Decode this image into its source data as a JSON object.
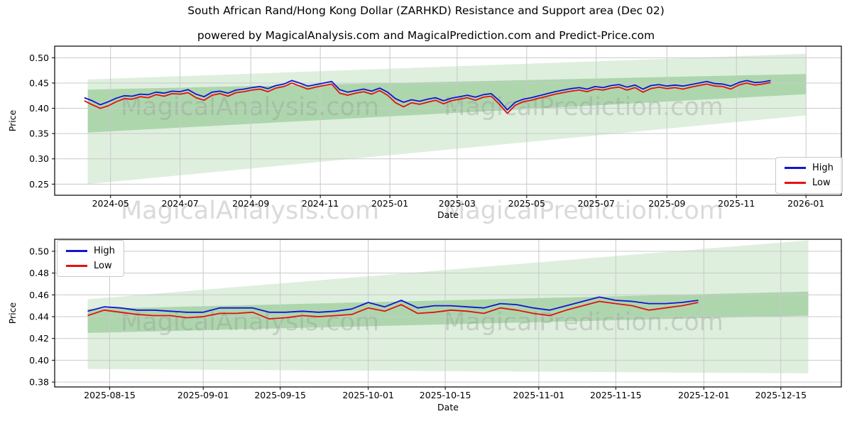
{
  "page": {
    "title": "South African Rand/Hong Kong Dollar (ZARHKD) Resistance and Support area (Dec 02)",
    "subtitle": "powered by MagicalAnalysis.com and MagicalPrediction.com and Predict-Price.com"
  },
  "watermarks": {
    "left_text": "MagicalAnalysis.com",
    "right_text": "MagicalPrediction.com",
    "color": "rgba(150,150,150,0.35)"
  },
  "colors": {
    "high_line": "#1414d2",
    "low_line": "#e41111",
    "band_light": "rgba(0,128,0,0.13)",
    "band_mid": "rgba(0,128,0,0.22)",
    "grid": "#c9c9c9",
    "spine": "#000000"
  },
  "chart_data": [
    {
      "type": "line",
      "title": "",
      "xlabel": "Date",
      "ylabel": "Price",
      "grid": true,
      "legend_position": "center-right",
      "x_domain": [
        "2024-03-13",
        "2026-02-01"
      ],
      "y_domain": [
        0.228,
        0.523
      ],
      "y_ticks": [
        0.25,
        0.3,
        0.35,
        0.4,
        0.45,
        0.5
      ],
      "x_ticks": [
        {
          "date": "2024-05-01",
          "label": "2024-05"
        },
        {
          "date": "2024-07-01",
          "label": "2024-07"
        },
        {
          "date": "2024-09-01",
          "label": "2024-09"
        },
        {
          "date": "2024-11-01",
          "label": "2024-11"
        },
        {
          "date": "2025-01-01",
          "label": "2025-01"
        },
        {
          "date": "2025-03-01",
          "label": "2025-03"
        },
        {
          "date": "2025-05-01",
          "label": "2025-05"
        },
        {
          "date": "2025-07-01",
          "label": "2025-07"
        },
        {
          "date": "2025-09-01",
          "label": "2025-09"
        },
        {
          "date": "2025-11-01",
          "label": "2025-11"
        },
        {
          "date": "2026-01-01",
          "label": "2026-01"
        }
      ],
      "bands": [
        {
          "name": "support-resistance-fan-light",
          "color_key": "band_light",
          "points": [
            [
              "2024-04-11",
              0.457
            ],
            [
              "2026-01-01",
              0.508
            ],
            [
              "2026-01-01",
              0.386
            ],
            [
              "2024-04-11",
              0.25
            ]
          ]
        },
        {
          "name": "support-resistance-fan-mid",
          "color_key": "band_mid",
          "points": [
            [
              "2024-04-11",
              0.437
            ],
            [
              "2026-01-01",
              0.468
            ],
            [
              "2026-01-01",
              0.428
            ],
            [
              "2024-04-11",
              0.352
            ]
          ]
        }
      ],
      "series": [
        {
          "name": "High",
          "color_key": "high_line",
          "start": "2024-04-08",
          "step_days": 7,
          "values": [
            0.421,
            0.415,
            0.407,
            0.413,
            0.42,
            0.425,
            0.424,
            0.428,
            0.427,
            0.432,
            0.43,
            0.434,
            0.433,
            0.437,
            0.428,
            0.423,
            0.432,
            0.434,
            0.43,
            0.436,
            0.438,
            0.441,
            0.443,
            0.439,
            0.445,
            0.448,
            0.455,
            0.45,
            0.444,
            0.447,
            0.45,
            0.453,
            0.437,
            0.432,
            0.435,
            0.438,
            0.434,
            0.44,
            0.432,
            0.419,
            0.412,
            0.417,
            0.414,
            0.418,
            0.421,
            0.415,
            0.42,
            0.423,
            0.426,
            0.422,
            0.427,
            0.429,
            0.415,
            0.397,
            0.412,
            0.418,
            0.421,
            0.425,
            0.429,
            0.433,
            0.436,
            0.439,
            0.441,
            0.438,
            0.443,
            0.441,
            0.445,
            0.447,
            0.442,
            0.446,
            0.438,
            0.445,
            0.447,
            0.444,
            0.446,
            0.444,
            0.447,
            0.45,
            0.453,
            0.449,
            0.448,
            0.444,
            0.451,
            0.455,
            0.451,
            0.452,
            0.455
          ]
        },
        {
          "name": "Low",
          "color_key": "low_line",
          "start": "2024-04-08",
          "step_days": 7,
          "values": [
            0.415,
            0.407,
            0.4,
            0.405,
            0.413,
            0.419,
            0.418,
            0.423,
            0.421,
            0.427,
            0.424,
            0.429,
            0.428,
            0.431,
            0.421,
            0.416,
            0.426,
            0.429,
            0.424,
            0.431,
            0.433,
            0.436,
            0.438,
            0.433,
            0.44,
            0.443,
            0.45,
            0.444,
            0.438,
            0.442,
            0.445,
            0.448,
            0.43,
            0.426,
            0.43,
            0.433,
            0.428,
            0.435,
            0.426,
            0.411,
            0.403,
            0.411,
            0.408,
            0.412,
            0.416,
            0.409,
            0.415,
            0.418,
            0.421,
            0.416,
            0.422,
            0.424,
            0.408,
            0.39,
            0.406,
            0.413,
            0.416,
            0.42,
            0.424,
            0.428,
            0.431,
            0.434,
            0.436,
            0.433,
            0.438,
            0.436,
            0.44,
            0.442,
            0.436,
            0.441,
            0.432,
            0.439,
            0.442,
            0.439,
            0.441,
            0.438,
            0.442,
            0.445,
            0.448,
            0.444,
            0.443,
            0.438,
            0.446,
            0.45,
            0.446,
            0.448,
            0.451
          ]
        }
      ]
    },
    {
      "type": "line",
      "title": "",
      "xlabel": "Date",
      "ylabel": "Price",
      "grid": true,
      "legend_position": "top-left",
      "x_domain": [
        "2025-08-05",
        "2025-12-26"
      ],
      "y_domain": [
        0.3755,
        0.511
      ],
      "y_ticks": [
        0.38,
        0.4,
        0.42,
        0.44,
        0.46,
        0.48,
        0.5
      ],
      "x_ticks": [
        {
          "date": "2025-08-15",
          "label": "2025-08-15"
        },
        {
          "date": "2025-09-01",
          "label": "2025-09-01"
        },
        {
          "date": "2025-09-15",
          "label": "2025-09-15"
        },
        {
          "date": "2025-10-01",
          "label": "2025-10-01"
        },
        {
          "date": "2025-10-15",
          "label": "2025-10-15"
        },
        {
          "date": "2025-11-01",
          "label": "2025-11-01"
        },
        {
          "date": "2025-11-15",
          "label": "2025-11-15"
        },
        {
          "date": "2025-12-01",
          "label": "2025-12-01"
        },
        {
          "date": "2025-12-15",
          "label": "2025-12-15"
        }
      ],
      "bands": [
        {
          "name": "support-resistance-fan-light",
          "color_key": "band_light",
          "points": [
            [
              "2025-08-11",
              0.456
            ],
            [
              "2025-12-20",
              0.51
            ],
            [
              "2025-12-20",
              0.388
            ],
            [
              "2025-08-11",
              0.392
            ]
          ]
        },
        {
          "name": "support-resistance-fan-mid",
          "color_key": "band_mid",
          "points": [
            [
              "2025-08-11",
              0.447
            ],
            [
              "2025-12-20",
              0.463
            ],
            [
              "2025-12-20",
              0.441
            ],
            [
              "2025-08-11",
              0.425
            ]
          ]
        }
      ],
      "series": [
        {
          "name": "High",
          "color_key": "high_line",
          "start": "2025-08-11",
          "step_days": 3,
          "values": [
            0.445,
            0.449,
            0.448,
            0.446,
            0.446,
            0.445,
            0.444,
            0.444,
            0.448,
            0.448,
            0.448,
            0.444,
            0.444,
            0.445,
            0.444,
            0.445,
            0.447,
            0.453,
            0.449,
            0.455,
            0.448,
            0.45,
            0.45,
            0.449,
            0.448,
            0.452,
            0.451,
            0.448,
            0.446,
            0.45,
            0.454,
            0.458,
            0.455,
            0.454,
            0.452,
            0.452,
            0.453,
            0.455
          ]
        },
        {
          "name": "Low",
          "color_key": "low_line",
          "start": "2025-08-11",
          "step_days": 3,
          "values": [
            0.441,
            0.446,
            0.444,
            0.442,
            0.441,
            0.441,
            0.439,
            0.44,
            0.443,
            0.443,
            0.444,
            0.438,
            0.439,
            0.441,
            0.44,
            0.441,
            0.442,
            0.448,
            0.445,
            0.451,
            0.443,
            0.444,
            0.446,
            0.445,
            0.443,
            0.448,
            0.446,
            0.443,
            0.441,
            0.446,
            0.45,
            0.454,
            0.452,
            0.45,
            0.446,
            0.448,
            0.45,
            0.453
          ]
        }
      ]
    }
  ]
}
